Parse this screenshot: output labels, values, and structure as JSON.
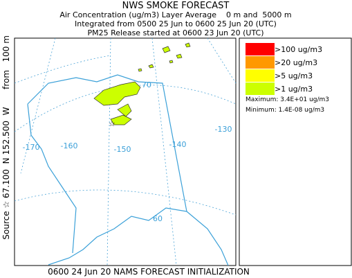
{
  "header": {
    "title": "NWS SMOKE FORECAST",
    "lines": [
      "Air Concentration (ug/m3) Layer Average    0 m and  5000 m",
      "Integrated from 0500 25 Jun to 0600 25 Jun 20 (UTC)",
      "PM25 Release started at 0600 23 Jun 20 (UTC)"
    ]
  },
  "side_label": {
    "source": "Source ☆ 67.100  N 152.500  W",
    "height": "from   100 m"
  },
  "map": {
    "labels": [
      "-170",
      "-160",
      "-150",
      "-140",
      "-130",
      "70",
      "60"
    ]
  },
  "legend": {
    "items": [
      {
        "label": ">100 ug/m3",
        "color": "#ff0000"
      },
      {
        "label": ">20 ug/m3",
        "color": "#ff9900"
      },
      {
        "label": ">5 ug/m3",
        "color": "#ffff00"
      },
      {
        "label": ">1 ug/m3",
        "color": "#ccff00"
      }
    ],
    "maximum": "Maximum: 3.4E+01 ug/m3",
    "minimum": "Minimum: 1.4E-08 ug/m3"
  },
  "footer": "0600 24 Jun 20 NAMS FORECAST INITIALIZATION"
}
